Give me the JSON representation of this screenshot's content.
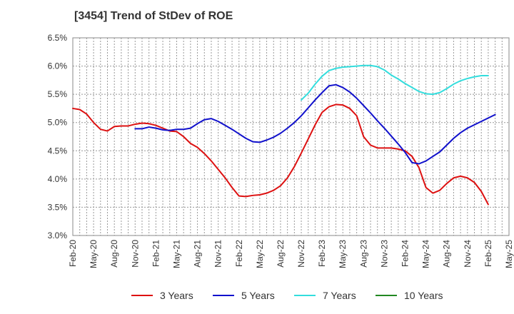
{
  "chart_data": {
    "type": "line",
    "title": "[3454]  Trend of StDev of ROE",
    "xlabel": "",
    "ylabel": "",
    "ylim": [
      3.0,
      6.5
    ],
    "y_ticks": [
      "3.0%",
      "3.5%",
      "4.0%",
      "4.5%",
      "5.0%",
      "5.5%",
      "6.0%",
      "6.5%"
    ],
    "x_ticks": [
      "Feb-20",
      "May-20",
      "Aug-20",
      "Nov-20",
      "Feb-21",
      "May-21",
      "Aug-21",
      "Nov-21",
      "Feb-22",
      "May-22",
      "Aug-22",
      "Nov-22",
      "Feb-23",
      "May-23",
      "Aug-23",
      "Nov-23",
      "Feb-24",
      "May-24",
      "Aug-24",
      "Nov-24",
      "Feb-25",
      "May-25"
    ],
    "grid": true,
    "legend_position": "bottom",
    "series": [
      {
        "name": "3 Years",
        "color": "#dd1111",
        "start": "Feb-20",
        "values": [
          5.25,
          5.23,
          5.15,
          5.0,
          4.88,
          4.85,
          4.93,
          4.94,
          4.94,
          4.97,
          4.99,
          4.98,
          4.95,
          4.9,
          4.85,
          4.84,
          4.75,
          4.63,
          4.56,
          4.45,
          4.32,
          4.17,
          4.02,
          3.85,
          3.7,
          3.69,
          3.71,
          3.72,
          3.75,
          3.8,
          3.88,
          4.02,
          4.22,
          4.46,
          4.71,
          4.96,
          5.18,
          5.28,
          5.32,
          5.31,
          5.25,
          5.12,
          4.75,
          4.6,
          4.55,
          4.55,
          4.55,
          4.53,
          4.5,
          4.4,
          4.2,
          3.85,
          3.75,
          3.8,
          3.92,
          4.02,
          4.05,
          4.02,
          3.94,
          3.78,
          3.55
        ]
      },
      {
        "name": "5 Years",
        "color": "#1111cc",
        "start": "Nov-20",
        "values": [
          4.89,
          4.89,
          4.92,
          4.9,
          4.87,
          4.86,
          4.88,
          4.88,
          4.9,
          4.98,
          5.05,
          5.07,
          5.02,
          4.95,
          4.88,
          4.8,
          4.72,
          4.66,
          4.65,
          4.69,
          4.74,
          4.81,
          4.9,
          5.0,
          5.12,
          5.26,
          5.4,
          5.53,
          5.65,
          5.67,
          5.62,
          5.54,
          5.43,
          5.3,
          5.17,
          5.03,
          4.9,
          4.76,
          4.62,
          4.47,
          4.29,
          4.27,
          4.32,
          4.4,
          4.48,
          4.6,
          4.72,
          4.82,
          4.9,
          4.96,
          5.02,
          5.08,
          5.14
        ]
      },
      {
        "name": "7 Years",
        "color": "#33dddd",
        "start": "Nov-22",
        "values": [
          5.4,
          5.52,
          5.68,
          5.82,
          5.92,
          5.96,
          5.98,
          5.99,
          6.0,
          6.01,
          6.01,
          5.99,
          5.93,
          5.84,
          5.77,
          5.69,
          5.62,
          5.55,
          5.51,
          5.5,
          5.53,
          5.6,
          5.68,
          5.74,
          5.78,
          5.81,
          5.83,
          5.83
        ]
      },
      {
        "name": "10 Years",
        "color": "#228822",
        "start": "Feb-25",
        "values": []
      }
    ]
  }
}
